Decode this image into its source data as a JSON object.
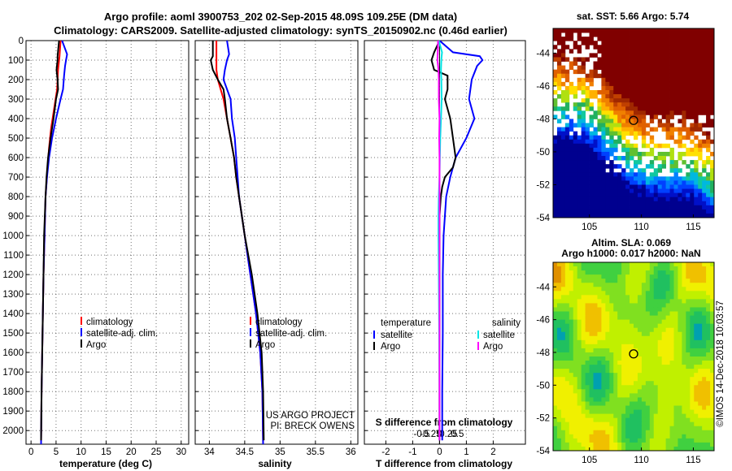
{
  "title": {
    "line1": "Argo profile: aoml 3900753_202 02-Sep-2015 48.09S 109.25E (DM data)",
    "line2": "Climatology: CARS2009. Satellite-adjusted climatology: synTS_20150902.nc (0.46d earlier)"
  },
  "colors": {
    "climatology": "#ff0000",
    "satellite": "#0000ff",
    "argo": "#000000",
    "temp_sat": "#0000ff",
    "sal_sat": "#00e5e5",
    "sal_argo": "#ff00ff"
  },
  "depth_ticks": [
    "0",
    "100",
    "200",
    "300",
    "400",
    "500",
    "600",
    "700",
    "800",
    "900",
    "1000",
    "1100",
    "1200",
    "1300",
    "1400",
    "1500",
    "1600",
    "1700",
    "1800",
    "1900",
    "2000"
  ],
  "chart_data": [
    {
      "type": "line",
      "name": "temperature-profile",
      "xlabel": "temperature (deg C)",
      "ylabel": "depth",
      "xlim": [
        -1,
        31.5
      ],
      "ylim": [
        0,
        2070
      ],
      "xticks": [
        "0",
        "5",
        "10",
        "15",
        "20",
        "25",
        "30"
      ],
      "legend": [
        "climatology",
        "satellite-adj. clim.",
        "Argo"
      ],
      "series": [
        {
          "name": "climatology",
          "color": "#ff0000",
          "depth": [
            0,
            80,
            150,
            250,
            350,
            450,
            550,
            650,
            800,
            1000,
            1200,
            1500,
            1800,
            2070
          ],
          "values": [
            5.9,
            5.7,
            5.4,
            5.2,
            4.6,
            4.0,
            3.6,
            3.3,
            2.9,
            2.7,
            2.5,
            2.3,
            2.1,
            2.0
          ]
        },
        {
          "name": "satellite-adj. clim.",
          "color": "#0000ff",
          "depth": [
            0,
            70,
            100,
            130,
            180,
            250,
            300,
            400,
            500,
            600,
            700,
            800,
            1000,
            1200,
            1500,
            1800,
            2070
          ],
          "values": [
            6.2,
            7.2,
            7.0,
            6.8,
            6.6,
            6.4,
            5.9,
            5.0,
            4.2,
            3.6,
            3.2,
            2.9,
            2.7,
            2.5,
            2.3,
            2.1,
            2.0
          ]
        },
        {
          "name": "Argo",
          "color": "#000000",
          "depth": [
            0,
            80,
            100,
            150,
            200,
            250,
            300,
            400,
            500,
            600,
            700,
            800,
            1000,
            1200,
            1500,
            1800,
            2050
          ],
          "values": [
            5.6,
            5.3,
            5.3,
            5.1,
            5.3,
            5.4,
            5.0,
            4.5,
            3.9,
            3.4,
            3.1,
            2.9,
            2.6,
            2.5,
            2.3,
            2.1,
            2.0
          ]
        }
      ]
    },
    {
      "type": "line",
      "name": "salinity-profile",
      "xlabel": "salinity",
      "ylabel": "depth",
      "xlim": [
        33.8,
        36.1
      ],
      "ylim": [
        0,
        2070
      ],
      "xticks": [
        "34",
        "34.5",
        "35",
        "35.5",
        "36"
      ],
      "legend": [
        "climatology",
        "satellite-adj. clim.",
        "Argo"
      ],
      "annotation": [
        "US ARGO PROJECT",
        "PI: BRECK OWENS"
      ],
      "series": [
        {
          "name": "climatology",
          "color": "#ff0000",
          "depth": [
            0,
            100,
            150,
            200,
            300,
            400,
            500,
            600,
            700,
            800,
            1000,
            1200,
            1400,
            1600,
            1800,
            2070
          ],
          "values": [
            34.1,
            34.1,
            34.1,
            34.12,
            34.2,
            34.25,
            34.3,
            34.35,
            34.38,
            34.42,
            34.5,
            34.58,
            34.66,
            34.72,
            34.75,
            34.76
          ]
        },
        {
          "name": "satellite-adj. clim.",
          "color": "#0000ff",
          "depth": [
            0,
            70,
            100,
            150,
            200,
            300,
            400,
            500,
            600,
            700,
            800,
            1000,
            1200,
            1400,
            1600,
            1800,
            2070
          ],
          "values": [
            34.25,
            34.28,
            34.25,
            34.22,
            34.2,
            34.3,
            34.32,
            34.36,
            34.38,
            34.4,
            34.42,
            34.5,
            34.58,
            34.66,
            34.72,
            34.75,
            34.76
          ]
        },
        {
          "name": "Argo",
          "color": "#000000",
          "depth": [
            0,
            80,
            100,
            150,
            200,
            250,
            300,
            400,
            500,
            600,
            700,
            800,
            1000,
            1200,
            1400,
            1600,
            1800,
            2050
          ],
          "values": [
            34.05,
            34.05,
            34.02,
            34.05,
            34.12,
            34.2,
            34.22,
            34.25,
            34.3,
            34.35,
            34.38,
            34.42,
            34.5,
            34.6,
            34.68,
            34.74,
            34.76,
            34.77
          ]
        }
      ]
    },
    {
      "type": "line",
      "name": "difference-profile",
      "xlabel": "T difference from climatology",
      "ylabel": "depth",
      "xlim": [
        -2.8,
        3.2
      ],
      "ylim": [
        0,
        2070
      ],
      "xticks": [
        "-2",
        "-1",
        "0",
        "1",
        "2"
      ],
      "xlabel2": "S difference from climatology",
      "xticks2": [
        "-0.5",
        "-0.25",
        "0",
        "0.25",
        "0.5"
      ],
      "legend_left_title": "temperature",
      "legend_left": [
        "satellite",
        "Argo"
      ],
      "legend_right_title": "salinity",
      "legend_right": [
        "satellite",
        "Argo"
      ],
      "series": [
        {
          "name": "temperature satellite",
          "color": "#0000ff",
          "depth": [
            0,
            60,
            80,
            100,
            130,
            200,
            300,
            400,
            500,
            600,
            700,
            800,
            900,
            1000,
            1200,
            1500,
            1800,
            2050
          ],
          "values": [
            0,
            0.5,
            1.5,
            1.6,
            1.4,
            1.2,
            1.1,
            1.3,
            1.0,
            0.6,
            0.4,
            0.25,
            0.2,
            0.15,
            0.12,
            0.12,
            0.1,
            0.1
          ]
        },
        {
          "name": "temperature Argo",
          "color": "#000000",
          "depth": [
            0,
            60,
            100,
            150,
            180,
            250,
            300,
            400,
            500,
            600,
            650,
            700,
            750,
            800,
            900,
            1000,
            1200,
            1500,
            1800,
            2050
          ],
          "values": [
            0,
            -0.2,
            -0.3,
            -0.2,
            0.3,
            0.3,
            0.2,
            0.4,
            0.5,
            0.6,
            0.5,
            0.2,
            0.1,
            0.05,
            0,
            0,
            0,
            0,
            0,
            0
          ]
        },
        {
          "name": "salinity satellite",
          "color": "#00e5e5",
          "depth": [
            0,
            60,
            80,
            100,
            150,
            200,
            300,
            400,
            500,
            600,
            700,
            800,
            900,
            1000,
            1200,
            1500,
            1800,
            2050
          ],
          "values": [
            -0.02,
            0.07,
            0.06,
            0.05,
            0.04,
            0.05,
            0.06,
            0.04,
            0.02,
            0.01,
            0.0,
            -0.02,
            -0.03,
            -0.03,
            -0.02,
            -0.01,
            0.0,
            0.0
          ]
        },
        {
          "name": "salinity Argo",
          "color": "#ff00ff",
          "depth": [
            0,
            60,
            100,
            150,
            200,
            300,
            400,
            500,
            600,
            700,
            800,
            900,
            1000,
            1200,
            1500,
            1800,
            2050
          ],
          "values": [
            -0.04,
            -0.05,
            -0.06,
            -0.03,
            -0.02,
            -0.02,
            0.0,
            -0.01,
            0.0,
            0.0,
            0.0,
            0.0,
            0.0,
            0.0,
            0.0,
            0.0,
            0.0
          ]
        }
      ]
    },
    {
      "type": "heatmap",
      "name": "sst-map",
      "title": "sat. SST: 5.66  Argo: 5.74",
      "xlim": [
        101.5,
        117
      ],
      "ylim": [
        -54,
        -42.5
      ],
      "xticks": [
        "105",
        "110",
        "115"
      ],
      "yticks": [
        "-44",
        "-46",
        "-48",
        "-50",
        "-52",
        "-54"
      ],
      "float_position": {
        "lon": 109.25,
        "lat": -48.09
      }
    },
    {
      "type": "heatmap",
      "name": "sla-map",
      "title": "Altim. SLA: 0.069",
      "subtitle": "Argo h1000: 0.017 h2000: NaN",
      "xlim": [
        101.5,
        117
      ],
      "ylim": [
        -54,
        -42.5
      ],
      "xticks": [
        "105",
        "110",
        "115"
      ],
      "yticks": [
        "-44",
        "-46",
        "-48",
        "-50",
        "-52",
        "-54"
      ],
      "float_position": {
        "lon": 109.25,
        "lat": -48.09
      }
    }
  ],
  "credit": "©IMOS 14-Dec-2018 10:03:57"
}
